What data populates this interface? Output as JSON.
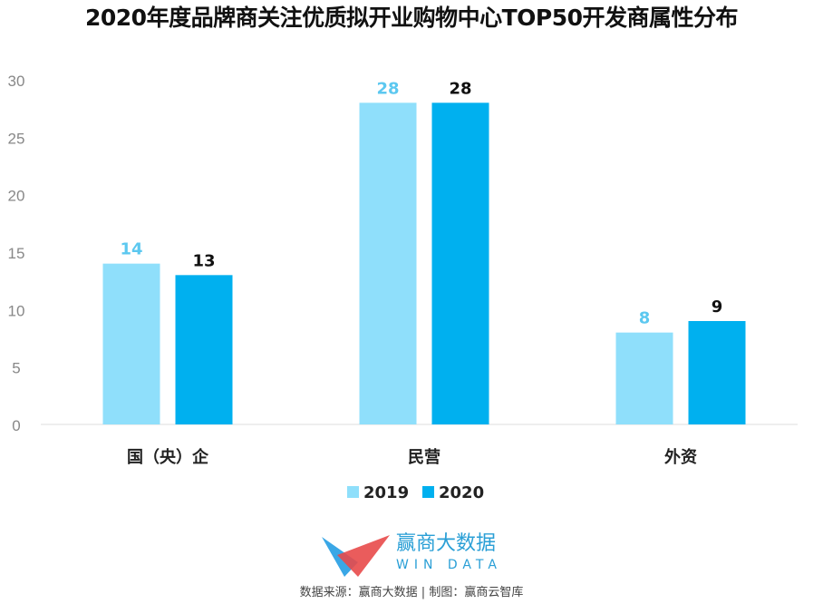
{
  "chart_data": {
    "type": "bar",
    "title": "2020年度品牌商关注优质拟开业购物中心TOP50开发商属性分布",
    "categories": [
      "国（央）企",
      "民营",
      "外资"
    ],
    "series": [
      {
        "name": "2019",
        "values": [
          14,
          28,
          8
        ],
        "color": "#8fdffb",
        "label_color": "#5cc8f0"
      },
      {
        "name": "2020",
        "values": [
          13,
          28,
          9
        ],
        "color": "#00b0ef",
        "label_color": "#111111"
      }
    ],
    "yticks": [
      0,
      5,
      10,
      15,
      20,
      25,
      30
    ],
    "ylim": [
      0,
      30
    ],
    "grid": false,
    "legend": "bottom",
    "xlabel": "",
    "ylabel": ""
  },
  "logo": {
    "name": "赢商大数据",
    "sub": "WIN DATA"
  },
  "source": "数据来源：赢商大数据 | 制图：赢商云智库"
}
